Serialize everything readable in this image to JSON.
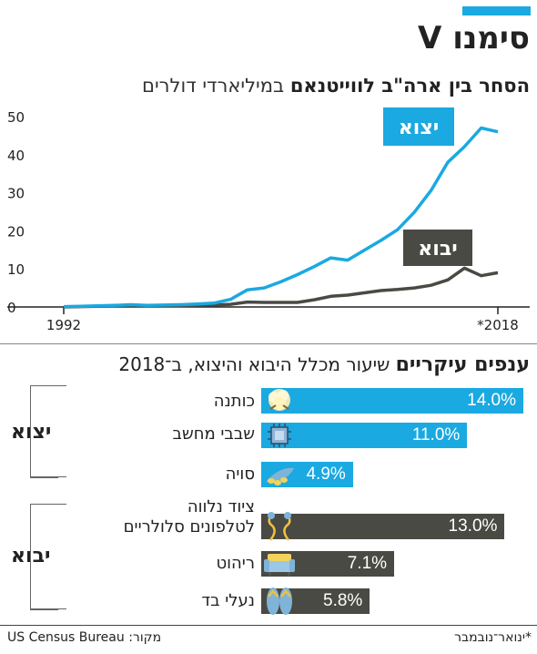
{
  "colors": {
    "accent": "#1aa9e1",
    "import": "#4a4a44",
    "axis": "#333333",
    "grid": "#dddddd"
  },
  "header": {
    "title": "סימנו V"
  },
  "trade_chart": {
    "title_bold": "הסחר בין ארה\"ב לווייטנאם",
    "title_unit": "במיליארדי דולרים",
    "x_start_label": "1992",
    "x_end_label": "*2018",
    "y_ticks": [
      "0",
      "10",
      "20",
      "30",
      "40",
      "50"
    ]
  },
  "chart_data": [
    {
      "type": "line",
      "title": "הסחר בין ארה\"ב לווייטנאם במיליארדי דולרים",
      "x": [
        1992,
        1993,
        1994,
        1995,
        1996,
        1997,
        1998,
        1999,
        2000,
        2001,
        2002,
        2003,
        2004,
        2005,
        2006,
        2007,
        2008,
        2009,
        2010,
        2011,
        2012,
        2013,
        2014,
        2015,
        2016,
        2017,
        2018
      ],
      "ylim": [
        0,
        50
      ],
      "grid": false,
      "series": [
        {
          "name": "יצוא",
          "values": [
            0.1,
            0.2,
            0.3,
            0.4,
            0.6,
            0.4,
            0.5,
            0.6,
            0.8,
            1.0,
            2.0,
            4.5,
            5.0,
            6.6,
            8.5,
            10.6,
            12.9,
            12.3,
            14.9,
            17.5,
            20.3,
            24.9,
            30.6,
            38.0,
            42.1,
            47.0,
            46.0
          ]
        },
        {
          "name": "יבוא",
          "values": [
            0.0,
            0.1,
            0.2,
            0.3,
            0.4,
            0.3,
            0.3,
            0.3,
            0.4,
            0.5,
            0.7,
            1.3,
            1.2,
            1.2,
            1.2,
            1.9,
            2.8,
            3.1,
            3.7,
            4.3,
            4.6,
            5.0,
            5.7,
            7.1,
            10.2,
            8.2,
            9.0
          ]
        }
      ]
    },
    {
      "type": "bar",
      "title": "ענפים עיקריים שיעור מכלל היבוא והיצוא, ב־2018",
      "categories": [
        "כותנה",
        "שבבי מחשב",
        "סויה",
        "ציוד נלווה לטלפונים סלולריים",
        "ריהוט",
        "נעלי בד"
      ],
      "values": [
        14.0,
        11.0,
        4.9,
        13.0,
        7.1,
        5.8
      ],
      "groups": [
        "יצוא",
        "יצוא",
        "יצוא",
        "יבוא",
        "יבוא",
        "יבוא"
      ]
    }
  ],
  "sectors": {
    "title_bold": "ענפים עיקריים",
    "title_rest": "שיעור מכלל היבוא והיצוא, ב־2018",
    "export_label": "יצוא",
    "import_label": "יבוא",
    "items": [
      {
        "name": "כותנה",
        "value_label": "14.0%",
        "value": 14.0,
        "group": "export",
        "icon": "cotton-icon"
      },
      {
        "name": "שבבי מחשב",
        "value_label": "11.0%",
        "value": 11.0,
        "group": "export",
        "icon": "chip-icon"
      },
      {
        "name": "סויה",
        "value_label": "4.9%",
        "value": 4.9,
        "group": "export",
        "icon": "soybean-icon"
      },
      {
        "name": "ציוד נלווה\nלטלפונים סלולריים",
        "value_label": "13.0%",
        "value": 13.0,
        "group": "import",
        "icon": "earphones-icon"
      },
      {
        "name": "ריהוט",
        "value_label": "7.1%",
        "value": 7.1,
        "group": "import",
        "icon": "sofa-icon"
      },
      {
        "name": "נעלי בד",
        "value_label": "5.8%",
        "value": 5.8,
        "group": "import",
        "icon": "sandals-icon"
      }
    ]
  },
  "footer": {
    "source": "מקור: US Census Bureau",
    "note": "*ינואר־נובמבר"
  }
}
